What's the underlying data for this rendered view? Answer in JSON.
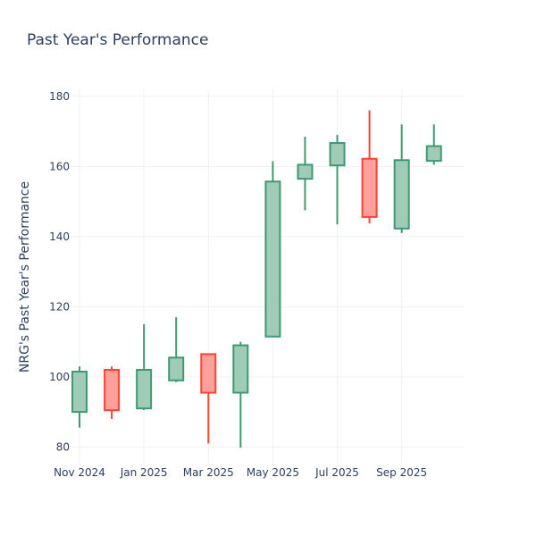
{
  "chart_data": {
    "type": "candlestick",
    "title": "Past Year's Performance",
    "ylabel": "NRG's Past Year's Performance",
    "xlabel": "",
    "ylim": [
      75,
      182
    ],
    "yticks": [
      80,
      100,
      120,
      140,
      160,
      180
    ],
    "x_range_months": [
      -0.25,
      11.95
    ],
    "xticks": [
      {
        "label": "Nov 2024",
        "month": 0
      },
      {
        "label": "Jan 2025",
        "month": 2
      },
      {
        "label": "Mar 2025",
        "month": 4
      },
      {
        "label": "May 2025",
        "month": 6
      },
      {
        "label": "Jul 2025",
        "month": 8
      },
      {
        "label": "Sep 2025",
        "month": 10
      }
    ],
    "colors": {
      "increasing_line": "#3d9970",
      "increasing_fill": "#a0cbb6",
      "decreasing_line": "#ff4136",
      "decreasing_fill": "#ffa09b"
    },
    "candles": [
      {
        "month": 0,
        "open": 90.0,
        "high": 103.0,
        "low": 85.5,
        "close": 101.5
      },
      {
        "month": 1,
        "open": 102.0,
        "high": 103.0,
        "low": 88.0,
        "close": 90.5
      },
      {
        "month": 2,
        "open": 91.0,
        "high": 115.0,
        "low": 90.5,
        "close": 102.0
      },
      {
        "month": 3,
        "open": 99.0,
        "high": 117.0,
        "low": 98.5,
        "close": 105.5
      },
      {
        "month": 4,
        "open": 106.5,
        "high": 106.5,
        "low": 81.0,
        "close": 95.5
      },
      {
        "month": 5,
        "open": 95.5,
        "high": 110.0,
        "low": 79.8,
        "close": 109.0
      },
      {
        "month": 6,
        "open": 111.5,
        "high": 161.5,
        "low": 111.5,
        "close": 155.7
      },
      {
        "month": 7,
        "open": 156.5,
        "high": 168.5,
        "low": 147.5,
        "close": 160.5
      },
      {
        "month": 8,
        "open": 160.3,
        "high": 169.0,
        "low": 143.5,
        "close": 166.7
      },
      {
        "month": 9,
        "open": 162.2,
        "high": 176.0,
        "low": 143.8,
        "close": 145.6
      },
      {
        "month": 10,
        "open": 142.3,
        "high": 172.0,
        "low": 141.0,
        "close": 161.8
      },
      {
        "month": 11,
        "open": 161.6,
        "high": 172.0,
        "low": 160.5,
        "close": 165.8
      }
    ]
  }
}
